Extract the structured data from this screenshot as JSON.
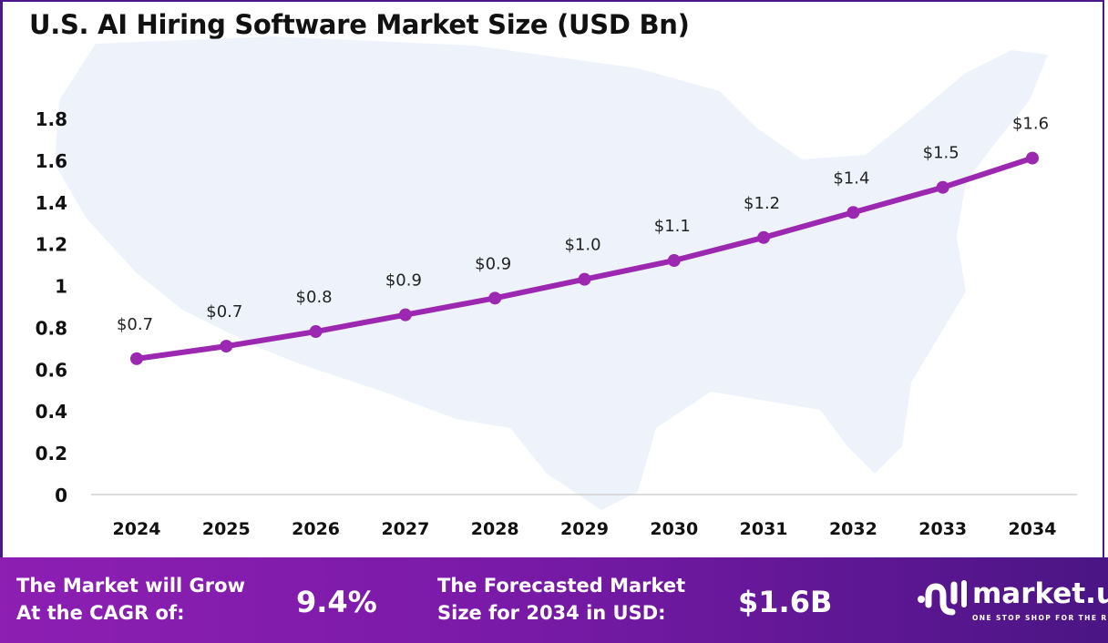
{
  "chart_data": {
    "type": "line",
    "title": "U.S. AI Hiring Software Market Size (USD Bn)",
    "categories": [
      "2024",
      "2025",
      "2026",
      "2027",
      "2028",
      "2029",
      "2030",
      "2031",
      "2032",
      "2033",
      "2034"
    ],
    "values": [
      0.65,
      0.71,
      0.78,
      0.86,
      0.94,
      1.03,
      1.12,
      1.23,
      1.35,
      1.47,
      1.61
    ],
    "data_labels": [
      "$0.7",
      "$0.7",
      "$0.8",
      "$0.9",
      "$0.9",
      "$1.0",
      "$1.1",
      "$1.2",
      "$1.4",
      "$1.5",
      "$1.6"
    ],
    "ylim": [
      0,
      1.8
    ],
    "yticks": [
      "0",
      "0.2",
      "0.4",
      "0.6",
      "0.8",
      "1",
      "1.2",
      "1.4",
      "1.6",
      "1.8"
    ],
    "xlabel": "",
    "ylabel": "",
    "grid": false,
    "line_color": "#9c27b0",
    "background_map": "United States silhouette"
  },
  "banner": {
    "cagr_label_1": "The Market will Grow",
    "cagr_label_2": "At the CAGR of:",
    "cagr_value": "9.4%",
    "forecast_label_1": "The Forecasted Market",
    "forecast_label_2": "Size for 2034 in USD:",
    "forecast_value": "$1.6B"
  },
  "logo": {
    "name": "market.us",
    "tagline": "ONE STOP SHOP FOR THE REPORTS"
  }
}
